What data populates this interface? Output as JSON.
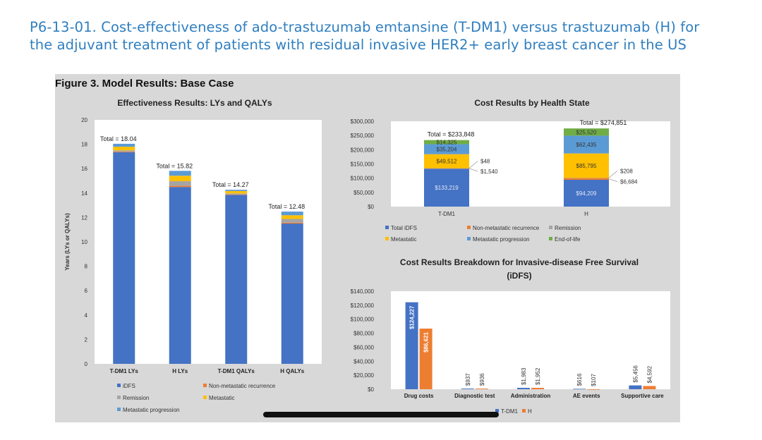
{
  "header": {
    "title_line1": "P6-13-01. Cost-effectiveness of ado-trastuzumab emtansine (T-DM1) versus trastuzumab (H) for",
    "title_line2": "the adjuvant treatment of patients with residual invasive HER2+ early breast cancer in the US"
  },
  "figure": {
    "caption": "Figure 3. Model Results: Base Case"
  },
  "colors": {
    "iDFS": "#4472c4",
    "nonmet": "#ed7d31",
    "remission": "#a5a5a5",
    "metastatic": "#ffc000",
    "metprog": "#5b9bd5",
    "eol": "#70ad47",
    "plot_bg": "#ffffff",
    "figure_bg": "#d8d8d8"
  },
  "chart_data": [
    {
      "id": "effectiveness",
      "type": "bar",
      "stacked": true,
      "title": "Effectiveness Results: LYs and QALYs",
      "xlabel": "",
      "ylabel": "Years (LYs or QALYs)",
      "ylim": [
        0,
        20
      ],
      "yticks": [
        "0",
        "2",
        "4",
        "6",
        "8",
        "10",
        "12",
        "14",
        "16",
        "18",
        "20"
      ],
      "categories": [
        "T-DM1 LYs",
        "H LYs",
        "T-DM1 QALYs",
        "H QALYs"
      ],
      "series": [
        {
          "name": "iDFS",
          "color_key": "iDFS",
          "values": [
            17.35,
            14.5,
            13.85,
            11.5
          ]
        },
        {
          "name": "Non-metastatic recurrence",
          "color_key": "nonmet",
          "values": [
            0.05,
            0.1,
            0.04,
            0.08
          ]
        },
        {
          "name": "Remission",
          "color_key": "remission",
          "values": [
            0.1,
            0.37,
            0.08,
            0.3
          ]
        },
        {
          "name": "Metastatic",
          "color_key": "metastatic",
          "values": [
            0.3,
            0.45,
            0.2,
            0.3
          ]
        },
        {
          "name": "Metastatic progression",
          "color_key": "metprog",
          "values": [
            0.24,
            0.4,
            0.1,
            0.3
          ]
        }
      ],
      "totals": [
        "Total = 18.04",
        "Total = 15.82",
        "Total = 14.27",
        "Total = 12.48"
      ],
      "legend": [
        {
          "name": "iDFS",
          "color_key": "iDFS"
        },
        {
          "name": "Non-metastatic recurrence",
          "color_key": "nonmet"
        },
        {
          "name": "Remission",
          "color_key": "remission"
        },
        {
          "name": "Metastatic",
          "color_key": "metastatic"
        },
        {
          "name": "Metastatic progression",
          "color_key": "metprog"
        }
      ],
      "legend_position": "bottom"
    },
    {
      "id": "cost-health-state",
      "type": "bar",
      "stacked": true,
      "title": "Cost Results by Health State",
      "ylim": [
        0,
        300000
      ],
      "yticks": [
        "$0",
        "$50,000",
        "$100,000",
        "$150,000",
        "$200,000",
        "$250,000",
        "$300,000"
      ],
      "categories": [
        "T-DM1",
        "H"
      ],
      "series": [
        {
          "name": "Total iDFS",
          "color_key": "iDFS",
          "values": [
            133219,
            94209
          ],
          "labels": [
            "$133,219",
            "$94,209"
          ]
        },
        {
          "name": "Non-metastatic recurrence",
          "color_key": "nonmet",
          "values": [
            1540,
            6684
          ],
          "labels": [
            "$1,540",
            "$6,684"
          ]
        },
        {
          "name": "Remission",
          "color_key": "remission",
          "values": [
            48,
            208
          ],
          "labels": [
            "$48",
            "$208"
          ]
        },
        {
          "name": "Metastatic",
          "color_key": "metastatic",
          "values": [
            49512,
            85795
          ],
          "labels": [
            "$49,512",
            "$85,795"
          ]
        },
        {
          "name": "Metastatic progression",
          "color_key": "metprog",
          "values": [
            35204,
            62435
          ],
          "labels": [
            "$35,204",
            "$62,435"
          ]
        },
        {
          "name": "End-of-life",
          "color_key": "eol",
          "values": [
            14325,
            25520
          ],
          "labels": [
            "$14,325",
            "$25,520"
          ]
        }
      ],
      "totals": [
        "Total = $233,848",
        "Total = $274,851"
      ],
      "legend": [
        {
          "name": "Total iDFS",
          "color_key": "iDFS"
        },
        {
          "name": "Non-metastatic recurrence",
          "color_key": "nonmet"
        },
        {
          "name": "Remission",
          "color_key": "remission"
        },
        {
          "name": "Metastatic",
          "color_key": "metastatic"
        },
        {
          "name": "Metastatic progression",
          "color_key": "metprog"
        },
        {
          "name": "End-of-life",
          "color_key": "eol"
        }
      ],
      "legend_position": "bottom"
    },
    {
      "id": "cost-idfs",
      "type": "bar",
      "stacked": false,
      "title_line1": "Cost Results Breakdown for Invasive-disease Free Survival",
      "title_line2": "(iDFS)",
      "ylim": [
        0,
        140000
      ],
      "yticks": [
        "$0",
        "$20,000",
        "$40,000",
        "$60,000",
        "$80,000",
        "$100,000",
        "$120,000",
        "$140,000"
      ],
      "categories": [
        "Drug costs",
        "Diagnostic test",
        "Administration",
        "AE events",
        "Supportive care"
      ],
      "series": [
        {
          "name": "T-DM1",
          "color_key": "iDFS",
          "values": [
            124227,
            937,
            1983,
            616,
            5456
          ],
          "labels": [
            "$124,227",
            "$937",
            "$1,983",
            "$616",
            "$5,456"
          ]
        },
        {
          "name": "H",
          "color_key": "nonmet",
          "values": [
            86621,
            936,
            1952,
            107,
            4592
          ],
          "labels": [
            "$86,621",
            "$936",
            "$1,952",
            "$107",
            "$4,592"
          ]
        }
      ],
      "legend_position": "bottom"
    }
  ]
}
